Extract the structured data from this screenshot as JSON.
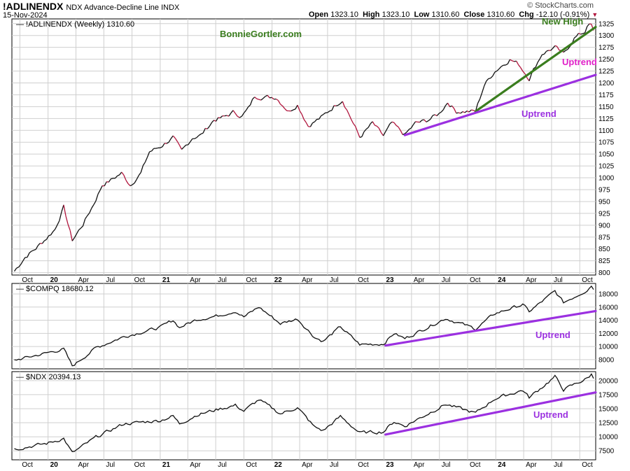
{
  "header": {
    "symbol": "!ADLINENDX",
    "description": "NDX Advance-Decline Line  INDX",
    "date": "15-Nov-2024",
    "brand": "© StockCharts.com",
    "open_label": "Open",
    "open": "1323.10",
    "high_label": "High",
    "high": "1323.10",
    "low_label": "Low",
    "low": "1310.60",
    "close_label": "Close",
    "close": "1310.60",
    "chg_label": "Chg",
    "chg": "-12.10 (-0.91%)",
    "chg_arrow": "▼"
  },
  "colors": {
    "price_line": "#111111",
    "down_segment": "#b0143c",
    "green_trend": "#3a7d1e",
    "purple_trend": "#9b30e0",
    "magenta_text": "#e020c8",
    "grid": "#cfcfcf"
  },
  "x_axis": {
    "labels": [
      "Oct",
      "20",
      "Apr",
      "Jul",
      "Oct",
      "21",
      "Apr",
      "Jul",
      "Oct",
      "22",
      "Apr",
      "Jul",
      "Oct",
      "23",
      "Apr",
      "Jul",
      "Oct",
      "24",
      "Apr",
      "Jul",
      "Oct"
    ],
    "year_labels": [
      "20",
      "21",
      "22",
      "23",
      "24"
    ]
  },
  "chart_data": [
    {
      "type": "line",
      "title": "!ADLINENDX (Weekly) 1310.60",
      "series_name": "!ADLINENDX",
      "last_value": 1310.6,
      "y_ticks": [
        800,
        825,
        850,
        875,
        900,
        925,
        950,
        975,
        1000,
        1025,
        1050,
        1075,
        1100,
        1125,
        1150,
        1175,
        1200,
        1225,
        1250,
        1275,
        1300,
        1325
      ],
      "ylim": [
        795,
        1335
      ],
      "x_start": "2019-09",
      "x_end": "2024-11-15",
      "anchors": [
        [
          "2019-09-13",
          803
        ],
        [
          "2019-10-18",
          833
        ],
        [
          "2019-11-22",
          851
        ],
        [
          "2019-12-27",
          873
        ],
        [
          "2020-01-24",
          892
        ],
        [
          "2020-02-21",
          938
        ],
        [
          "2020-03-20",
          868
        ],
        [
          "2020-04-24",
          902
        ],
        [
          "2020-05-29",
          945
        ],
        [
          "2020-06-26",
          985
        ],
        [
          "2020-07-24",
          995
        ],
        [
          "2020-08-28",
          1010
        ],
        [
          "2020-09-25",
          985
        ],
        [
          "2020-10-30",
          1010
        ],
        [
          "2020-11-27",
          1055
        ],
        [
          "2020-12-31",
          1065
        ],
        [
          "2021-02-12",
          1085
        ],
        [
          "2021-03-12",
          1055
        ],
        [
          "2021-04-16",
          1085
        ],
        [
          "2021-05-14",
          1090
        ],
        [
          "2021-06-25",
          1122
        ],
        [
          "2021-07-30",
          1128
        ],
        [
          "2021-08-27",
          1138
        ],
        [
          "2021-09-24",
          1130
        ],
        [
          "2021-10-15",
          1145
        ],
        [
          "2021-11-05",
          1172
        ],
        [
          "2021-12-10",
          1170
        ],
        [
          "2022-01-14",
          1170
        ],
        [
          "2022-02-25",
          1140
        ],
        [
          "2022-03-25",
          1155
        ],
        [
          "2022-04-29",
          1110
        ],
        [
          "2022-06-17",
          1130
        ],
        [
          "2022-07-29",
          1155
        ],
        [
          "2022-08-19",
          1165
        ],
        [
          "2022-10-14",
          1085
        ],
        [
          "2022-11-25",
          1115
        ],
        [
          "2022-12-30",
          1088
        ],
        [
          "2023-01-27",
          1115
        ],
        [
          "2023-03-10",
          1090
        ],
        [
          "2023-04-14",
          1115
        ],
        [
          "2023-05-19",
          1120
        ],
        [
          "2023-06-30",
          1135
        ],
        [
          "2023-07-28",
          1160
        ],
        [
          "2023-08-25",
          1140
        ],
        [
          "2023-10-27",
          1140
        ],
        [
          "2023-11-24",
          1195
        ],
        [
          "2023-12-29",
          1225
        ],
        [
          "2024-02-16",
          1250
        ],
        [
          "2024-03-15",
          1240
        ],
        [
          "2024-04-19",
          1210
        ],
        [
          "2024-05-31",
          1262
        ],
        [
          "2024-07-12",
          1275
        ],
        [
          "2024-08-09",
          1260
        ],
        [
          "2024-09-13",
          1295
        ],
        [
          "2024-10-18",
          1308
        ],
        [
          "2024-10-25",
          1323
        ],
        [
          "2024-11-08",
          1322
        ],
        [
          "2024-11-15",
          1310.6
        ]
      ],
      "annotations": [
        {
          "text": "BonnieGortler.com",
          "color": "#3a7d1e"
        },
        {
          "text": "New High",
          "color": "#3a7d1e"
        },
        {
          "text": "Uptrend",
          "color": "#e020c8"
        },
        {
          "text": "Uptrend",
          "color": "#9b30e0"
        }
      ],
      "trendlines": [
        {
          "color": "#3a7d1e",
          "from": [
            "2023-10-27",
            1140
          ],
          "to": [
            "2024-11-22",
            1318
          ]
        },
        {
          "color": "#9b30e0",
          "from": [
            "2023-03-10",
            1090
          ],
          "to": [
            "2024-11-22",
            1217
          ]
        }
      ]
    },
    {
      "type": "line",
      "title": "$COMPQ 18680.12",
      "series_name": "$COMPQ",
      "last_value": 18680.12,
      "y_ticks": [
        8000,
        10000,
        12000,
        14000,
        16000,
        18000
      ],
      "ylim": [
        6600,
        19600
      ],
      "anchors": [
        [
          "2019-09-13",
          7900
        ],
        [
          "2019-12-27",
          9000
        ],
        [
          "2020-02-21",
          9600
        ],
        [
          "2020-03-20",
          7000
        ],
        [
          "2020-06-05",
          9800
        ],
        [
          "2020-09-04",
          11500
        ],
        [
          "2020-12-31",
          12900
        ],
        [
          "2021-02-12",
          14000
        ],
        [
          "2021-03-05",
          12900
        ],
        [
          "2021-04-30",
          14100
        ],
        [
          "2021-07-09",
          14700
        ],
        [
          "2021-09-03",
          15400
        ],
        [
          "2021-10-01",
          14500
        ],
        [
          "2021-11-19",
          16000
        ],
        [
          "2022-01-28",
          13500
        ],
        [
          "2022-03-25",
          14200
        ],
        [
          "2022-05-20",
          11400
        ],
        [
          "2022-06-17",
          10800
        ],
        [
          "2022-08-12",
          13000
        ],
        [
          "2022-10-14",
          10300
        ],
        [
          "2022-12-30",
          10400
        ],
        [
          "2023-02-03",
          12000
        ],
        [
          "2023-03-10",
          11200
        ],
        [
          "2023-07-21",
          14300
        ],
        [
          "2023-10-27",
          12700
        ],
        [
          "2023-12-29",
          15000
        ],
        [
          "2024-03-29",
          16400
        ],
        [
          "2024-04-19",
          15300
        ],
        [
          "2024-07-12",
          18400
        ],
        [
          "2024-08-09",
          16700
        ],
        [
          "2024-10-25",
          18600
        ],
        [
          "2024-11-08",
          19300
        ],
        [
          "2024-11-15",
          18680
        ]
      ],
      "annotations": [
        {
          "text": "Uptrend",
          "color": "#9b30e0"
        }
      ],
      "trendlines": [
        {
          "color": "#9b30e0",
          "from": [
            "2023-01-06",
            10150
          ],
          "to": [
            "2024-11-22",
            15400
          ]
        }
      ]
    },
    {
      "type": "line",
      "title": "$NDX 20394.13",
      "series_name": "$NDX",
      "last_value": 20394.13,
      "y_ticks": [
        7500,
        10000,
        12500,
        15000,
        17500,
        20000
      ],
      "ylim": [
        5900,
        21600
      ],
      "anchors": [
        [
          "2019-09-13",
          7800
        ],
        [
          "2019-12-27",
          8800
        ],
        [
          "2020-02-21",
          9700
        ],
        [
          "2020-03-20",
          7100
        ],
        [
          "2020-06-05",
          9900
        ],
        [
          "2020-09-04",
          12300
        ],
        [
          "2020-12-31",
          12900
        ],
        [
          "2021-02-12",
          13700
        ],
        [
          "2021-03-05",
          12300
        ],
        [
          "2021-04-30",
          13900
        ],
        [
          "2021-07-09",
          14900
        ],
        [
          "2021-09-03",
          15600
        ],
        [
          "2021-10-01",
          14600
        ],
        [
          "2021-11-19",
          16600
        ],
        [
          "2022-01-28",
          14100
        ],
        [
          "2022-03-25",
          15200
        ],
        [
          "2022-05-20",
          11700
        ],
        [
          "2022-06-17",
          11100
        ],
        [
          "2022-08-12",
          13600
        ],
        [
          "2022-10-14",
          10700
        ],
        [
          "2022-12-30",
          10900
        ],
        [
          "2023-02-03",
          12700
        ],
        [
          "2023-03-10",
          11900
        ],
        [
          "2023-07-21",
          15800
        ],
        [
          "2023-10-27",
          14200
        ],
        [
          "2023-12-29",
          16800
        ],
        [
          "2024-03-29",
          18300
        ],
        [
          "2024-04-19",
          17000
        ],
        [
          "2024-07-12",
          20700
        ],
        [
          "2024-08-09",
          18400
        ],
        [
          "2024-10-25",
          20400
        ],
        [
          "2024-11-08",
          21100
        ],
        [
          "2024-11-15",
          20394
        ]
      ],
      "annotations": [
        {
          "text": "Uptrend",
          "color": "#9b30e0"
        }
      ],
      "trendlines": [
        {
          "color": "#9b30e0",
          "from": [
            "2023-01-06",
            10400
          ],
          "to": [
            "2024-11-22",
            17900
          ]
        }
      ]
    }
  ]
}
